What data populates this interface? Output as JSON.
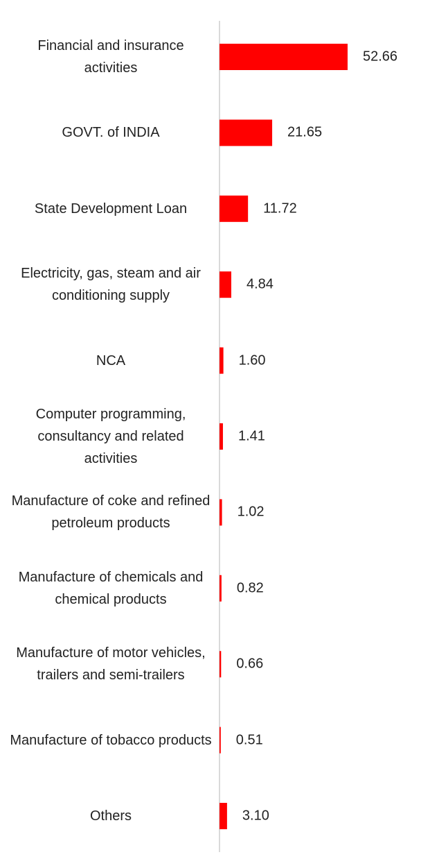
{
  "chart_data": {
    "type": "bar",
    "orientation": "horizontal",
    "categories": [
      "Financial and insurance activities",
      "GOVT. of INDIA",
      "State Development Loan",
      "Electricity, gas, steam and air conditioning supply",
      "NCA",
      "Computer programming, consultancy and related activities",
      "Manufacture of coke and refined petroleum products",
      "Manufacture of chemicals and chemical products",
      "Manufacture of motor vehicles, trailers and semi-trailers",
      "Manufacture of tobacco products",
      "Others"
    ],
    "values": [
      52.66,
      21.65,
      11.72,
      4.84,
      1.6,
      1.41,
      1.02,
      0.82,
      0.66,
      0.51,
      3.1
    ],
    "value_labels": [
      "52.66",
      "21.65",
      "11.72",
      "4.84",
      "1.60",
      "1.41",
      "1.02",
      "0.82",
      "0.66",
      "0.51",
      "3.10"
    ],
    "color": "#ff0000"
  }
}
